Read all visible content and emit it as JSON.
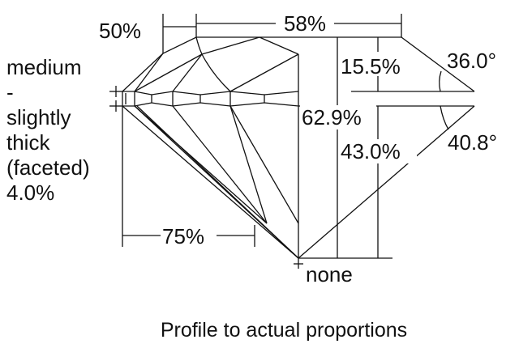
{
  "girdle_label": [
    "medium",
    "-",
    "slightly",
    "thick",
    "(faceted)",
    "4.0%"
  ],
  "measurements": {
    "lower_half": "50%",
    "table": "58%",
    "crown_height": "15.5%",
    "crown_angle": "36.0°",
    "total_depth": "62.9%",
    "pavilion_depth": "43.0%",
    "pavilion_angle": "40.8°",
    "lower_girdle": "75%",
    "culet": "none"
  },
  "caption": "Profile to actual proportions"
}
